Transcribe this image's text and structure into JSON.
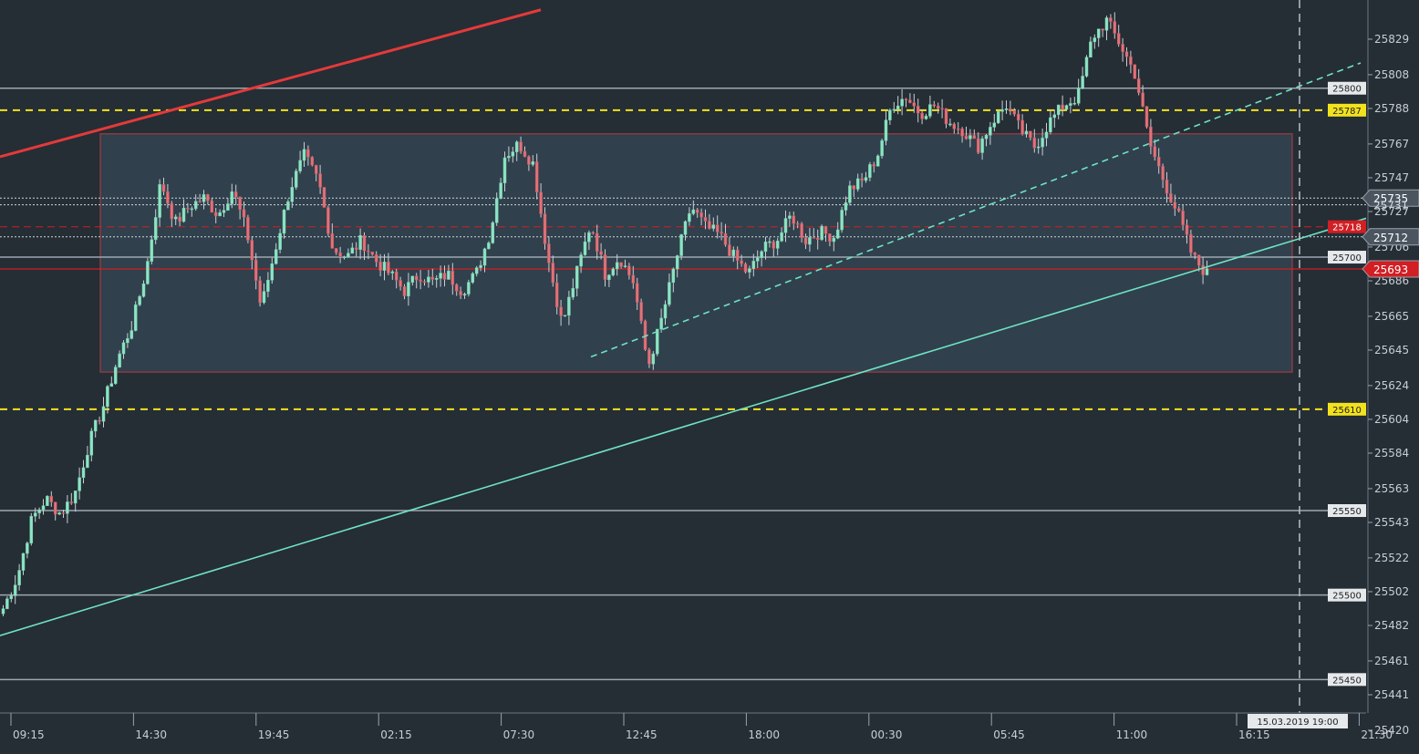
{
  "chart_data": {
    "type": "candlestick",
    "ylim": [
      25420,
      25850
    ],
    "y_ticks": [
      25829,
      25808,
      25788,
      25767,
      25747,
      25727,
      25706,
      25686,
      25665,
      25645,
      25624,
      25604,
      25584,
      25563,
      25543,
      25522,
      25502,
      25482,
      25461,
      25441,
      25420
    ],
    "x_ticks": [
      "09:15",
      "14:30",
      "19:45",
      "02:15",
      "07:30",
      "12:45",
      "18:00",
      "00:30",
      "05:45",
      "11:00",
      "16:15",
      "21:30"
    ],
    "current_time_label": "15.03.2019 19:00",
    "horizontal_levels": [
      {
        "value": 25800,
        "label": "25800",
        "style": "solid",
        "color": "#9ea7b0",
        "tag_bg": "#e6e9ec",
        "tag_fg": "#222222"
      },
      {
        "value": 25787,
        "label": "25787",
        "style": "dashed",
        "color": "#f2e21e",
        "tag_bg": "#f2e21e",
        "tag_fg": "#222222"
      },
      {
        "value": 25700,
        "label": "25700",
        "style": "solid",
        "color": "#9ea7b0",
        "tag_bg": "#e6e9ec",
        "tag_fg": "#222222"
      },
      {
        "value": 25610,
        "label": "25610",
        "style": "dashed",
        "color": "#f2e21e",
        "tag_bg": "#f2e21e",
        "tag_fg": "#222222"
      },
      {
        "value": 25550,
        "label": "25550",
        "style": "solid",
        "color": "#9ea7b0",
        "tag_bg": "#e6e9ec",
        "tag_fg": "#222222"
      },
      {
        "value": 25500,
        "label": "25500",
        "style": "solid",
        "color": "#9ea7b0",
        "tag_bg": "#e6e9ec",
        "tag_fg": "#222222"
      },
      {
        "value": 25450,
        "label": "25450",
        "style": "solid",
        "color": "#9ea7b0",
        "tag_bg": "#e6e9ec",
        "tag_fg": "#222222"
      }
    ],
    "price_markers": [
      {
        "value": 25735,
        "label": "25735",
        "line": "dotted",
        "color": "#cfd6dc",
        "tag_bg": "#4a5560",
        "tag_fg": "#ffffff"
      },
      {
        "value": 25731,
        "label": "25731",
        "line": "dotted",
        "color": "#cfd6dc",
        "tag_bg": null,
        "tag_fg": "#cfd6dc"
      },
      {
        "value": 25718,
        "label": "25718",
        "line": "dashed",
        "color": "#d11f24",
        "tag_bg": "#d11f24",
        "tag_fg": "#ffffff"
      },
      {
        "value": 25712,
        "label": "25712",
        "line": "dotted",
        "color": "#cfd6dc",
        "tag_bg": "#4a5560",
        "tag_fg": "#ffffff"
      },
      {
        "value": 25693,
        "label": "25693",
        "line": "solid",
        "color": "#d11f24",
        "tag_bg": "#d11f24",
        "tag_fg": "#ffffff"
      }
    ],
    "range_box": {
      "from_time": "16:30 day1",
      "to_time": "19:00 day5",
      "high": 25773,
      "low": 25632
    },
    "trend_lines": [
      {
        "name": "red-resistance",
        "color": "#e33a3a",
        "style": "solid"
      },
      {
        "name": "teal-support",
        "color": "#6ee3c3",
        "style": "solid"
      },
      {
        "name": "teal-channel",
        "color": "#6ee3c3",
        "style": "dashed"
      }
    ],
    "candles_keypoints": [
      25492,
      25511,
      25545,
      25557,
      25548,
      25560,
      25590,
      25612,
      25640,
      25660,
      25693,
      25745,
      25720,
      25730,
      25735,
      25725,
      25740,
      25715,
      25670,
      25705,
      25740,
      25760,
      25745,
      25705,
      25700,
      25710,
      25698,
      25690,
      25680,
      25690,
      25685,
      25690,
      25680,
      25690,
      25715,
      25760,
      25767,
      25755,
      25700,
      25660,
      25690,
      25720,
      25690,
      25700,
      25685,
      25635,
      25665,
      25700,
      25730,
      25718,
      25713,
      25700,
      25690,
      25705,
      25710,
      25725,
      25710,
      25715,
      25712,
      25740,
      25745,
      25760,
      25790,
      25795,
      25785,
      25790,
      25780,
      25775,
      25765,
      25780,
      25790,
      25775,
      25765,
      25780,
      25790,
      25795,
      25830,
      25840,
      25825,
      25808,
      25767,
      25745,
      25725,
      25700,
      25690
    ]
  }
}
